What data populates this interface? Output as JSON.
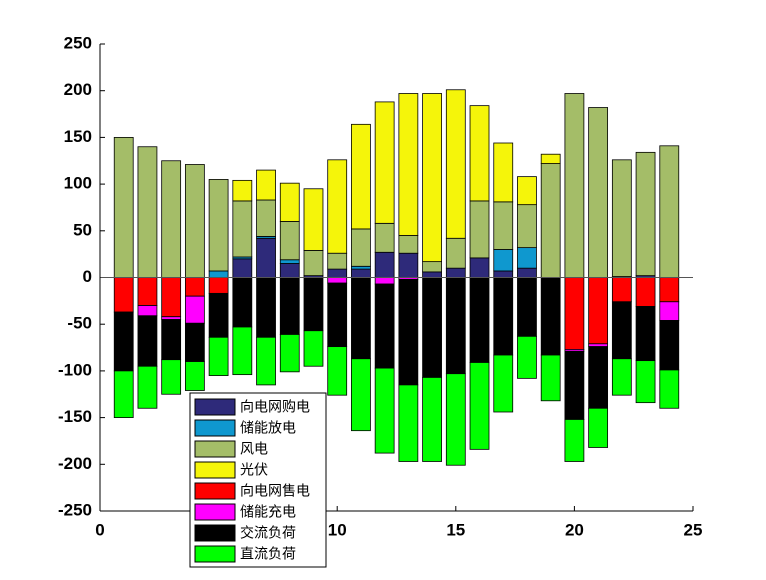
{
  "chart_data": {
    "type": "bar",
    "stacked": true,
    "x": [
      1,
      2,
      3,
      4,
      5,
      6,
      7,
      8,
      9,
      10,
      11,
      12,
      13,
      14,
      15,
      16,
      17,
      18,
      19,
      20,
      21,
      22,
      23,
      24
    ],
    "xlim": [
      0,
      25
    ],
    "xticks": [
      0,
      5,
      10,
      15,
      20,
      25
    ],
    "ylim": [
      -250,
      250
    ],
    "yticks": [
      -250,
      -200,
      -150,
      -100,
      -50,
      0,
      50,
      100,
      150,
      200,
      250
    ],
    "legend": "lower left",
    "series": [
      {
        "name": "向电网购电",
        "color": "#2e2a7a",
        "values": [
          0,
          0,
          0,
          0,
          0,
          20,
          42,
          15,
          2,
          9,
          9,
          27,
          26,
          6,
          10,
          21,
          7,
          10,
          0,
          0,
          0,
          1,
          2,
          0
        ]
      },
      {
        "name": "储能放电",
        "color": "#0f98cf",
        "values": [
          0,
          0,
          0,
          0,
          7,
          2,
          2,
          4,
          0,
          0,
          3,
          0,
          0,
          0,
          0,
          0,
          23,
          22,
          0,
          0,
          0,
          0,
          0,
          0
        ]
      },
      {
        "name": "风电",
        "color": "#a4bd68",
        "values": [
          150,
          140,
          125,
          121,
          98,
          60,
          39,
          41,
          27,
          17,
          40,
          31,
          19,
          11,
          32,
          61,
          51,
          46,
          122,
          197,
          182,
          125,
          132,
          141
        ]
      },
      {
        "name": "光伏",
        "color": "#f5f50a",
        "values": [
          0,
          0,
          0,
          0,
          0,
          22,
          32,
          41,
          66,
          100,
          112,
          130,
          152,
          180,
          159,
          102,
          63,
          30,
          10,
          0,
          0,
          0,
          0,
          0
        ]
      },
      {
        "name": "向电网售电",
        "color": "#ff0000",
        "values": [
          -37,
          -30,
          -42,
          -20,
          -17,
          0,
          0,
          0,
          0,
          0,
          0,
          0,
          0,
          0,
          0,
          0,
          0,
          0,
          0,
          -77,
          -71,
          -26,
          -31,
          -26
        ]
      },
      {
        "name": "储能充电",
        "color": "#ff00ff",
        "values": [
          0,
          -11,
          -3,
          -29,
          0,
          0,
          0,
          0,
          0,
          -6,
          0,
          -7,
          -2,
          0,
          0,
          0,
          0,
          0,
          0,
          -2,
          -3,
          0,
          0,
          -20
        ]
      },
      {
        "name": "交流负荷",
        "color": "#000000",
        "values": [
          -63,
          -54,
          -43,
          -41,
          -47,
          -53,
          -64,
          -61,
          -57,
          -68,
          -87,
          -90,
          -113,
          -107,
          -103,
          -91,
          -83,
          -63,
          -83,
          -73,
          -66,
          -61,
          -58,
          -53
        ]
      },
      {
        "name": "直流负荷",
        "color": "#00ff00",
        "values": [
          -50,
          -45,
          -37,
          -31,
          -41,
          -51,
          -51,
          -40,
          -38,
          -52,
          -77,
          -91,
          -82,
          -90,
          -98,
          -93,
          -61,
          -45,
          -49,
          -45,
          -42,
          -39,
          -45,
          -41
        ]
      }
    ]
  }
}
